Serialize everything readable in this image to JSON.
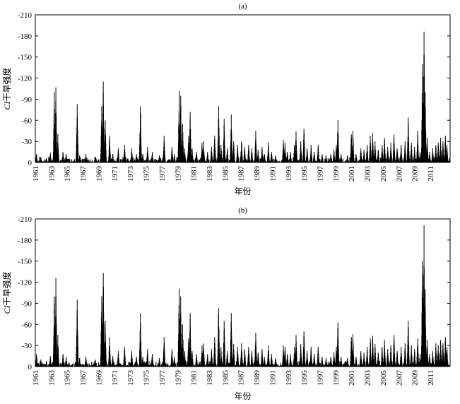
{
  "chart_data": [
    {
      "type": "bar",
      "panel_label": "(a)",
      "xlabel": "年份",
      "ylabel_italic": "CI",
      "ylabel_rest": "干旱强度",
      "ylim": [
        0,
        -210
      ],
      "yticks": [
        "0",
        "-30",
        "-60",
        "-90",
        "-120",
        "-150",
        "-180",
        "-210"
      ],
      "xlim": [
        1961,
        2013.5
      ],
      "xticks": [
        "1961",
        "1963",
        "1965",
        "1967",
        "1969",
        "1971",
        "1973",
        "1975",
        "1977",
        "1979",
        "1981",
        "1983",
        "1985",
        "1987",
        "1989",
        "1991",
        "1993",
        "1995",
        "1997",
        "1999",
        "2001",
        "2003",
        "2005",
        "2007",
        "2009",
        "2011"
      ],
      "peaks": [
        [
          1961.15,
          -12
        ],
        [
          1961.7,
          -8
        ],
        [
          1962.4,
          -6
        ],
        [
          1962.9,
          -14
        ],
        [
          1963.4,
          -100
        ],
        [
          1963.6,
          -107
        ],
        [
          1963.85,
          -40
        ],
        [
          1964.5,
          -15
        ],
        [
          1964.9,
          -12
        ],
        [
          1966.3,
          -83
        ],
        [
          1966.6,
          -10
        ],
        [
          1967.4,
          -12
        ],
        [
          1968.6,
          -8
        ],
        [
          1969.4,
          -80
        ],
        [
          1969.6,
          -115
        ],
        [
          1969.85,
          -60
        ],
        [
          1970.4,
          -38
        ],
        [
          1970.8,
          -12
        ],
        [
          1971.5,
          -20
        ],
        [
          1972.3,
          -25
        ],
        [
          1973.2,
          -20
        ],
        [
          1973.8,
          -12
        ],
        [
          1974.3,
          -80
        ],
        [
          1974.6,
          -12
        ],
        [
          1975.2,
          -22
        ],
        [
          1975.8,
          -15
        ],
        [
          1976.7,
          -10
        ],
        [
          1977.3,
          -38
        ],
        [
          1978.3,
          -22
        ],
        [
          1978.6,
          -12
        ],
        [
          1979.2,
          -102
        ],
        [
          1979.4,
          -95
        ],
        [
          1979.65,
          -55
        ],
        [
          1979.9,
          -20
        ],
        [
          1980.4,
          -38
        ],
        [
          1980.6,
          -72
        ],
        [
          1980.85,
          -20
        ],
        [
          1981.4,
          -15
        ],
        [
          1982.1,
          -28
        ],
        [
          1982.3,
          -30
        ],
        [
          1982.8,
          -15
        ],
        [
          1983.3,
          -22
        ],
        [
          1983.7,
          -38
        ],
        [
          1984.2,
          -80
        ],
        [
          1984.5,
          -25
        ],
        [
          1984.9,
          -62
        ],
        [
          1985.3,
          -20
        ],
        [
          1985.8,
          -68
        ],
        [
          1986.1,
          -30
        ],
        [
          1986.6,
          -25
        ],
        [
          1987.1,
          -30
        ],
        [
          1987.5,
          -22
        ],
        [
          1988.0,
          -25
        ],
        [
          1988.4,
          -20
        ],
        [
          1988.9,
          -45
        ],
        [
          1989.2,
          -18
        ],
        [
          1989.7,
          -22
        ],
        [
          1990.0,
          -12
        ],
        [
          1990.5,
          -28
        ],
        [
          1990.9,
          -15
        ],
        [
          1991.4,
          -10
        ],
        [
          1992.4,
          -32
        ],
        [
          1992.6,
          -28
        ],
        [
          1992.9,
          -15
        ],
        [
          1993.3,
          -15
        ],
        [
          1993.8,
          -25
        ],
        [
          1994.0,
          -44
        ],
        [
          1994.6,
          -30
        ],
        [
          1995.0,
          -48
        ],
        [
          1995.4,
          -20
        ],
        [
          1995.9,
          -25
        ],
        [
          1996.3,
          -15
        ],
        [
          1996.8,
          -25
        ],
        [
          1997.3,
          -12
        ],
        [
          1997.8,
          -10
        ],
        [
          1998.4,
          -12
        ],
        [
          1998.8,
          -18
        ],
        [
          1999.1,
          -25
        ],
        [
          1999.3,
          -60
        ],
        [
          1999.7,
          -12
        ],
        [
          2000.5,
          -10
        ],
        [
          2001.0,
          -40
        ],
        [
          2001.2,
          -45
        ],
        [
          2001.6,
          -12
        ],
        [
          2002.2,
          -20
        ],
        [
          2002.6,
          -18
        ],
        [
          2003.0,
          -25
        ],
        [
          2003.4,
          -38
        ],
        [
          2003.7,
          -42
        ],
        [
          2004.0,
          -30
        ],
        [
          2004.4,
          -18
        ],
        [
          2004.9,
          -25
        ],
        [
          2005.2,
          -35
        ],
        [
          2005.6,
          -22
        ],
        [
          2006.0,
          -28
        ],
        [
          2006.4,
          -40
        ],
        [
          2006.8,
          -20
        ],
        [
          2007.3,
          -25
        ],
        [
          2007.8,
          -30
        ],
        [
          2008.2,
          -64
        ],
        [
          2008.6,
          -28
        ],
        [
          2009.0,
          -22
        ],
        [
          2009.4,
          -45
        ],
        [
          2009.7,
          -15
        ],
        [
          2010.0,
          -140
        ],
        [
          2010.2,
          -186
        ],
        [
          2010.35,
          -100
        ],
        [
          2010.6,
          -35
        ],
        [
          2010.9,
          -15
        ],
        [
          2011.3,
          -20
        ],
        [
          2011.7,
          -25
        ],
        [
          2012.0,
          -28
        ],
        [
          2012.3,
          -35
        ],
        [
          2012.6,
          -30
        ],
        [
          2012.9,
          -38
        ],
        [
          2013.1,
          -25
        ]
      ]
    },
    {
      "type": "bar",
      "panel_label": "(b)",
      "xlabel": "年份",
      "ylabel_italic": "CI",
      "ylabel_rest": "干旱强度",
      "ylim": [
        0,
        -210
      ],
      "yticks": [
        "0",
        "-30",
        "-60",
        "-90",
        "-120",
        "-150",
        "-180",
        "-210"
      ],
      "xlim": [
        1961,
        2013.5
      ],
      "xticks": [
        "1961",
        "1963",
        "1965",
        "1967",
        "1969",
        "1971",
        "1973",
        "1975",
        "1977",
        "1979",
        "1981",
        "1983",
        "1985",
        "1987",
        "1989",
        "1991",
        "1993",
        "1995",
        "1997",
        "1999",
        "2001",
        "2003",
        "2005",
        "2007",
        "2009",
        "2011"
      ],
      "peaks": [
        [
          1961.15,
          -18
        ],
        [
          1961.7,
          -10
        ],
        [
          1962.4,
          -8
        ],
        [
          1962.9,
          -15
        ],
        [
          1963.4,
          -100
        ],
        [
          1963.6,
          -126
        ],
        [
          1963.85,
          -45
        ],
        [
          1964.5,
          -18
        ],
        [
          1964.9,
          -14
        ],
        [
          1966.3,
          -95
        ],
        [
          1966.6,
          -12
        ],
        [
          1967.4,
          -14
        ],
        [
          1968.6,
          -10
        ],
        [
          1969.4,
          -100
        ],
        [
          1969.6,
          -133
        ],
        [
          1969.85,
          -65
        ],
        [
          1970.4,
          -42
        ],
        [
          1970.8,
          -15
        ],
        [
          1971.5,
          -22
        ],
        [
          1972.3,
          -28
        ],
        [
          1973.2,
          -22
        ],
        [
          1973.8,
          -14
        ],
        [
          1974.3,
          -76
        ],
        [
          1974.6,
          -14
        ],
        [
          1975.2,
          -25
        ],
        [
          1975.8,
          -18
        ],
        [
          1976.7,
          -12
        ],
        [
          1977.3,
          -42
        ],
        [
          1978.3,
          -25
        ],
        [
          1978.6,
          -14
        ],
        [
          1979.2,
          -111
        ],
        [
          1979.4,
          -100
        ],
        [
          1979.65,
          -60
        ],
        [
          1979.9,
          -22
        ],
        [
          1980.4,
          -40
        ],
        [
          1980.6,
          -76
        ],
        [
          1980.85,
          -22
        ],
        [
          1981.4,
          -18
        ],
        [
          1982.1,
          -30
        ],
        [
          1982.3,
          -33
        ],
        [
          1982.8,
          -18
        ],
        [
          1983.3,
          -25
        ],
        [
          1983.7,
          -42
        ],
        [
          1984.2,
          -83
        ],
        [
          1984.5,
          -28
        ],
        [
          1984.9,
          -65
        ],
        [
          1985.3,
          -22
        ],
        [
          1985.8,
          -76
        ],
        [
          1986.1,
          -32
        ],
        [
          1986.6,
          -28
        ],
        [
          1987.1,
          -33
        ],
        [
          1987.5,
          -25
        ],
        [
          1988.0,
          -28
        ],
        [
          1988.4,
          -22
        ],
        [
          1988.9,
          -48
        ],
        [
          1989.2,
          -20
        ],
        [
          1989.7,
          -25
        ],
        [
          1990.0,
          -14
        ],
        [
          1990.5,
          -30
        ],
        [
          1990.9,
          -18
        ],
        [
          1991.4,
          -12
        ],
        [
          1992.4,
          -30
        ],
        [
          1992.6,
          -28
        ],
        [
          1992.9,
          -18
        ],
        [
          1993.3,
          -18
        ],
        [
          1993.8,
          -28
        ],
        [
          1994.0,
          -45
        ],
        [
          1994.6,
          -32
        ],
        [
          1995.0,
          -50
        ],
        [
          1995.4,
          -22
        ],
        [
          1995.9,
          -28
        ],
        [
          1996.3,
          -18
        ],
        [
          1996.8,
          -28
        ],
        [
          1997.3,
          -14
        ],
        [
          1997.8,
          -12
        ],
        [
          1998.4,
          -14
        ],
        [
          1998.8,
          -20
        ],
        [
          1999.1,
          -28
        ],
        [
          1999.3,
          -63
        ],
        [
          1999.7,
          -14
        ],
        [
          2000.5,
          -12
        ],
        [
          2001.0,
          -42
        ],
        [
          2001.2,
          -46
        ],
        [
          2001.6,
          -14
        ],
        [
          2002.2,
          -22
        ],
        [
          2002.6,
          -20
        ],
        [
          2003.0,
          -28
        ],
        [
          2003.4,
          -40
        ],
        [
          2003.7,
          -44
        ],
        [
          2004.0,
          -32
        ],
        [
          2004.4,
          -20
        ],
        [
          2004.9,
          -28
        ],
        [
          2005.2,
          -38
        ],
        [
          2005.6,
          -25
        ],
        [
          2006.0,
          -30
        ],
        [
          2006.4,
          -45
        ],
        [
          2006.8,
          -22
        ],
        [
          2007.3,
          -28
        ],
        [
          2007.8,
          -33
        ],
        [
          2008.2,
          -65
        ],
        [
          2008.6,
          -30
        ],
        [
          2009.0,
          -25
        ],
        [
          2009.4,
          -40
        ],
        [
          2009.7,
          -18
        ],
        [
          2010.0,
          -150
        ],
        [
          2010.2,
          -201
        ],
        [
          2010.35,
          -110
        ],
        [
          2010.6,
          -38
        ],
        [
          2010.9,
          -18
        ],
        [
          2011.3,
          -22
        ],
        [
          2011.7,
          -33
        ],
        [
          2012.0,
          -30
        ],
        [
          2012.3,
          -38
        ],
        [
          2012.6,
          -33
        ],
        [
          2012.9,
          -42
        ],
        [
          2013.1,
          -28
        ]
      ]
    }
  ]
}
